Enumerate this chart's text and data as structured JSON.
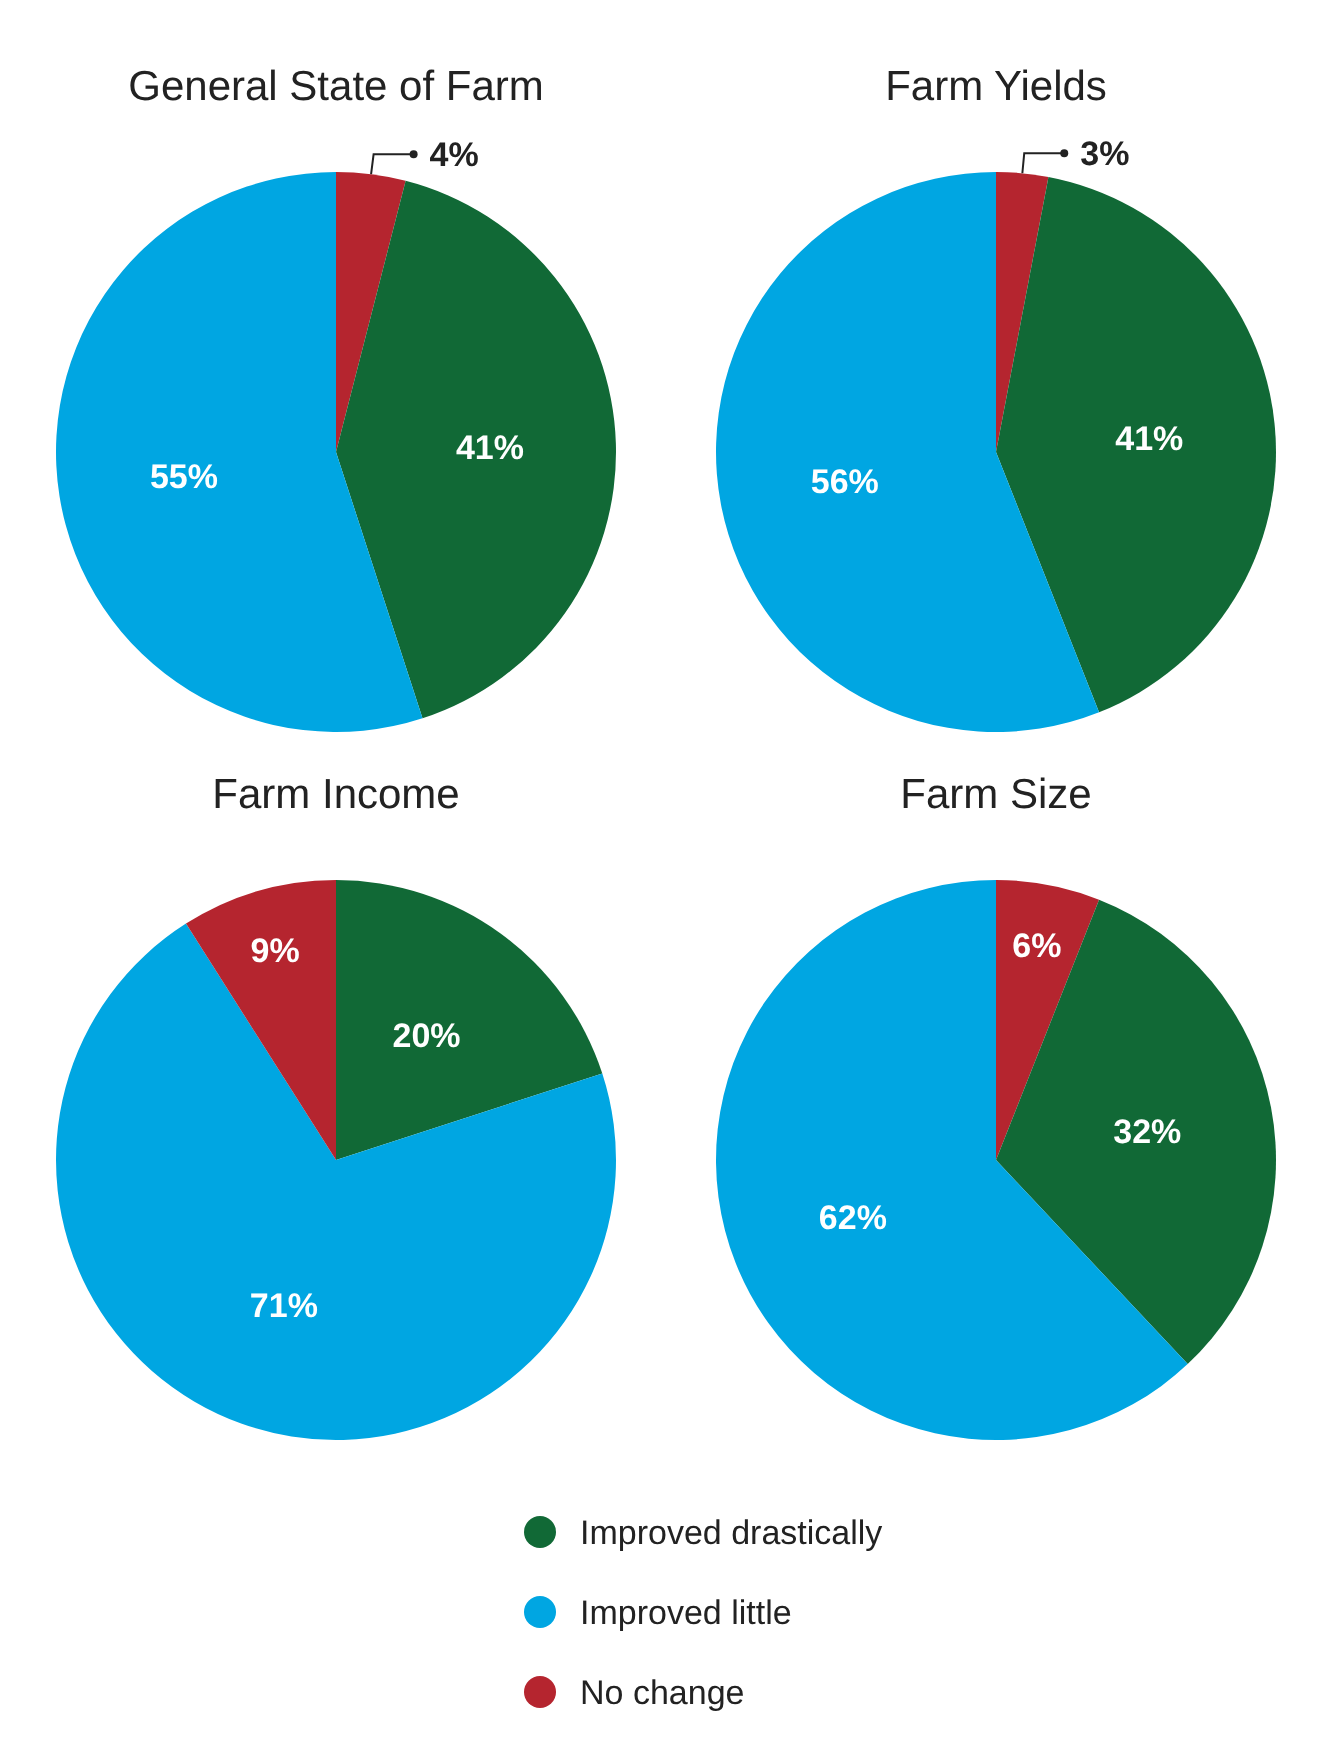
{
  "chart_data": [
    {
      "type": "pie",
      "title": "General State of Farm",
      "categories": [
        "No change",
        "Improved drastically",
        "Improved little"
      ],
      "values": [
        4,
        41,
        55
      ],
      "value_labels": [
        "4%",
        "41%",
        "55%"
      ],
      "colors": [
        "#b5252f",
        "#116936",
        "#00a6e2"
      ],
      "legend": "bottom"
    },
    {
      "type": "pie",
      "title": "Farm Yields",
      "categories": [
        null,
        null,
        null
      ],
      "values": [
        3,
        41,
        56
      ],
      "value_labels": [
        "3%",
        "41%",
        "56%"
      ],
      "colors": [
        "#b5252f",
        "#116936",
        "#00a6e2"
      ]
    },
    {
      "type": "pie",
      "title": "Farm Income",
      "categories": [
        null,
        null,
        null
      ],
      "values": [
        20,
        71,
        9
      ],
      "value_labels": [
        "20%",
        "71%",
        "9%"
      ],
      "colors": [
        "#116936",
        "#00a6e2",
        "#b5252f"
      ]
    },
    {
      "type": "pie",
      "title": "Farm Size",
      "categories": [
        null,
        null,
        null
      ],
      "values": [
        6,
        32,
        62
      ],
      "value_labels": [
        "6%",
        "32%",
        "62%"
      ],
      "colors": [
        "#b5252f",
        "#116936",
        "#00a6e2"
      ]
    }
  ]
}
